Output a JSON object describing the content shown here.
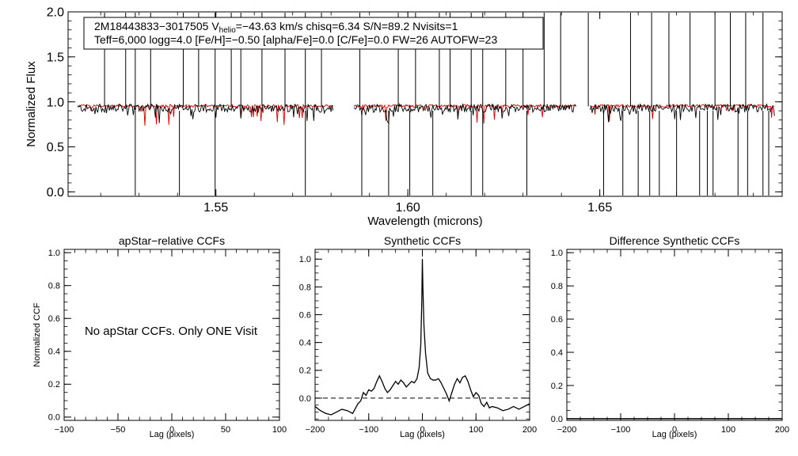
{
  "chart_data": [
    {
      "type": "line",
      "title": "",
      "xlabel": "Wavelength (microns)",
      "ylabel": "Normalized Flux",
      "xlim": [
        1.5115,
        1.6975
      ],
      "ylim": [
        -0.05,
        2.0
      ],
      "xticks": [
        "1.55",
        "1.60",
        "1.65"
      ],
      "xtick_values": [
        1.55,
        1.6,
        1.65
      ],
      "yticks": [
        "0.0",
        "0.5",
        "1.0",
        "1.5",
        "2.0"
      ],
      "ytick_values": [
        0.0,
        0.5,
        1.0,
        1.5,
        2.0
      ],
      "annotation": {
        "star_id": "2M18443833−3017505",
        "v_label": "V",
        "v_sub": "helio",
        "v_value": "=−43.63 km/s",
        "chisq": "chisq=6.34",
        "sn": "S/N=89.2",
        "nvisits": "Nvisits=1",
        "line2": "Teff=6,000 logg=4.0 [Fe/H]=−0.50 [alpha/Fe]=0.0 [C/Fe]=0.0 FW=26 AUTOFW=23"
      },
      "chip_ranges": [
        [
          1.514,
          1.5805
        ],
        [
          1.586,
          1.6438
        ],
        [
          1.6475,
          1.6955
        ]
      ],
      "series": [
        {
          "name": "observed",
          "color": "#000000",
          "base": 0.93
        },
        {
          "name": "synthetic",
          "color": "#d40000",
          "base": 0.955
        }
      ],
      "spike_positions": [
        1.521,
        1.5265,
        1.529,
        1.533,
        1.5415,
        1.5455,
        1.5498,
        1.554,
        1.5565,
        1.562,
        1.568,
        1.5733,
        1.5775,
        1.5875,
        1.5975,
        1.602,
        1.6082,
        1.611,
        1.6165,
        1.6195,
        1.6255,
        1.63,
        1.6355,
        1.6398,
        1.647,
        1.658,
        1.6635,
        1.668,
        1.6735,
        1.68,
        1.684,
        1.688,
        1.6925
      ],
      "dip_positions": [
        1.529,
        1.5405,
        1.5498,
        1.5733,
        1.588,
        1.595,
        1.6005,
        1.6065,
        1.6165,
        1.6195,
        1.631,
        1.651,
        1.656,
        1.66,
        1.663,
        1.6655,
        1.67,
        1.676,
        1.678,
        1.6795,
        1.686,
        1.6885,
        1.6925,
        1.694
      ]
    },
    {
      "type": "line",
      "title": "apStar−relative CCFs",
      "xlabel": "Lag (pixels)",
      "ylabel": "Normalized CCF",
      "xlim": [
        -100,
        100
      ],
      "ylim": [
        -0.02,
        1.02
      ],
      "xticks": [
        "−100",
        "−50",
        "0",
        "50",
        "100"
      ],
      "xtick_values": [
        -100,
        -50,
        0,
        50,
        100
      ],
      "yticks": [
        "0.0",
        "0.2",
        "0.4",
        "0.6",
        "0.8",
        "1.0"
      ],
      "ytick_values": [
        0.0,
        0.2,
        0.4,
        0.6,
        0.8,
        1.0
      ],
      "message": "No apStar CCFs.  Only ONE Visit",
      "series": []
    },
    {
      "type": "line",
      "title": "Synthetic CCFs",
      "xlabel": "Lag (pixels)",
      "ylabel": "",
      "xlim": [
        -200,
        200
      ],
      "ylim": [
        -0.16,
        1.07
      ],
      "xticks": [
        "−200",
        "−100",
        "0",
        "100",
        "200"
      ],
      "xtick_values": [
        -200,
        -100,
        0,
        100,
        200
      ],
      "yticks": [
        "0.0",
        "0.2",
        "0.4",
        "0.6",
        "0.8",
        "1.0"
      ],
      "ytick_values": [
        0.0,
        0.2,
        0.4,
        0.6,
        0.8,
        1.0
      ],
      "reference_line": 0.0,
      "series": [
        {
          "name": "CCF",
          "color": "#000000",
          "x": [
            -200,
            -190,
            -180,
            -170,
            -160,
            -150,
            -140,
            -130,
            -120,
            -115,
            -110,
            -105,
            -100,
            -95,
            -90,
            -85,
            -80,
            -75,
            -70,
            -65,
            -60,
            -55,
            -50,
            -45,
            -40,
            -35,
            -30,
            -25,
            -20,
            -15,
            -10,
            -6,
            -3,
            -1,
            0,
            1,
            3,
            6,
            10,
            15,
            20,
            25,
            30,
            35,
            40,
            45,
            50,
            55,
            60,
            65,
            70,
            75,
            80,
            85,
            90,
            95,
            100,
            105,
            110,
            115,
            120,
            125,
            130,
            140,
            150,
            160,
            170,
            180,
            190,
            200
          ],
          "values": [
            -0.06,
            -0.09,
            -0.11,
            -0.12,
            -0.1,
            -0.08,
            -0.09,
            -0.11,
            -0.04,
            -0.02,
            0.04,
            0.02,
            0.06,
            0.05,
            0.07,
            0.12,
            0.16,
            0.12,
            0.07,
            0.04,
            0.06,
            0.09,
            0.12,
            0.1,
            0.13,
            0.11,
            0.08,
            0.1,
            0.12,
            0.11,
            0.14,
            0.22,
            0.38,
            0.7,
            1.0,
            0.8,
            0.52,
            0.32,
            0.18,
            0.14,
            0.13,
            0.13,
            0.14,
            0.11,
            0.07,
            0.03,
            -0.02,
            0.04,
            0.1,
            0.14,
            0.11,
            0.15,
            0.16,
            0.12,
            0.06,
            0.01,
            0.04,
            0.02,
            -0.04,
            -0.06,
            -0.03,
            -0.07,
            -0.06,
            -0.07,
            -0.09,
            -0.08,
            -0.06,
            -0.08,
            -0.06,
            -0.04
          ]
        }
      ]
    },
    {
      "type": "line",
      "title": "Difference Synthetic CCFs",
      "xlabel": "Lag (pixels)",
      "ylabel": "",
      "xlim": [
        -200,
        200
      ],
      "ylim": [
        -0.01,
        1.02
      ],
      "xticks": [
        "−200",
        "−100",
        "0",
        "100",
        "200"
      ],
      "xtick_values": [
        -200,
        -100,
        0,
        100,
        200
      ],
      "yticks": [
        "0.0",
        "0.2",
        "0.4",
        "0.6",
        "0.8",
        "1.0"
      ],
      "ytick_values": [
        0.0,
        0.2,
        0.4,
        0.6,
        0.8,
        1.0
      ],
      "series": [
        {
          "name": "difference",
          "color": "#000000",
          "x": [
            -200,
            200
          ],
          "values": [
            0.0,
            0.0
          ]
        }
      ]
    }
  ]
}
